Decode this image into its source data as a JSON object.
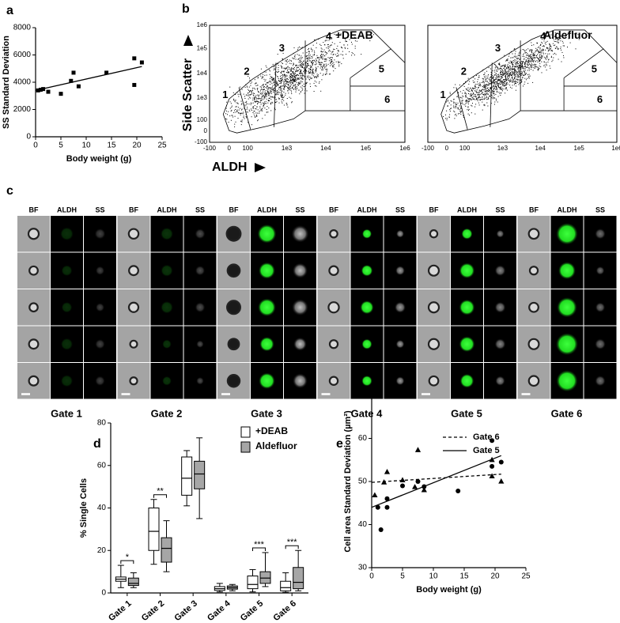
{
  "chart_data": [
    {
      "type": "scatter",
      "panel": "a",
      "xlabel": "Body weight (g)",
      "ylabel": "SS Standard Deviation",
      "xlim": [
        0,
        25
      ],
      "xticks": [
        0,
        5,
        10,
        15,
        20,
        25
      ],
      "ylim": [
        0,
        8000
      ],
      "yticks": [
        0,
        2000,
        4000,
        6000,
        8000
      ],
      "color": "#000000",
      "x": [
        0.5,
        1,
        1.5,
        2.5,
        5,
        7,
        7.5,
        8.5,
        14,
        19.5,
        19.5,
        21
      ],
      "values": [
        3400,
        3450,
        3500,
        3300,
        3150,
        4100,
        4700,
        3700,
        4700,
        5750,
        3800,
        5450
      ],
      "fit": {
        "x": [
          0,
          21
        ],
        "values": [
          3400,
          5150
        ]
      }
    },
    {
      "type": "box",
      "panel": "d",
      "ylabel": "% Single Cells",
      "categories": [
        "Gate 1",
        "Gate 2",
        "Gate 3",
        "Gate 4",
        "Gate 5",
        "Gate 6"
      ],
      "ylim": [
        0,
        80
      ],
      "yticks": [
        0,
        20,
        40,
        60,
        80
      ],
      "legend": "upper right",
      "series": [
        {
          "name": "+DEAB",
          "color": "#ffffff",
          "min": [
            2.5,
            13.5,
            41,
            0.5,
            0.5,
            0.3
          ],
          "q1": [
            5.5,
            20,
            46,
            1.2,
            2,
            1
          ],
          "median": [
            6.5,
            29,
            54,
            2,
            4,
            2.5
          ],
          "q3": [
            7.5,
            40,
            64,
            3,
            8,
            5.5
          ],
          "max": [
            13,
            44,
            67,
            4.5,
            11,
            9.5
          ]
        },
        {
          "name": "Aldefluor",
          "color": "#a6a6a6",
          "min": [
            2.5,
            10,
            35,
            1,
            3,
            1
          ],
          "q1": [
            3.5,
            14.5,
            49,
            1.8,
            4.5,
            2
          ],
          "median": [
            4.5,
            21,
            56,
            2.5,
            7,
            5
          ],
          "q3": [
            7,
            26,
            62,
            3.3,
            10,
            12
          ],
          "max": [
            9.5,
            34,
            73,
            4,
            19,
            20
          ]
        }
      ],
      "significance": [
        "*",
        "**",
        null,
        null,
        "***",
        "***"
      ]
    },
    {
      "type": "scatter",
      "panel": "e",
      "xlabel": "Body weight (g)",
      "ylabel": "Cell area Standard Deviation (µm²)",
      "xlim": [
        0,
        25
      ],
      "xticks": [
        0,
        5,
        10,
        15,
        20,
        25
      ],
      "ylim": [
        30,
        70
      ],
      "yticks": [
        30,
        40,
        50,
        60,
        70
      ],
      "legend": "upper right",
      "series": [
        {
          "name": "Gate 6",
          "color": "#000000",
          "marker": "triangle",
          "dashed": true,
          "x": [
            0.5,
            2,
            2.5,
            5,
            7,
            7.5,
            8.5,
            19.5,
            19.5,
            21
          ],
          "values": [
            46.8,
            49.8,
            52.2,
            50.3,
            48.7,
            57.3,
            48,
            55,
            51.2,
            50
          ],
          "fit": {
            "x": [
              0,
              21
            ],
            "values": [
              49.8,
              51.7
            ]
          }
        },
        {
          "name": "Gate 5",
          "color": "#000000",
          "marker": "circle",
          "dashed": false,
          "x": [
            1,
            1.5,
            2.5,
            2.5,
            5,
            7.5,
            8.5,
            14,
            19.5,
            19.5,
            21
          ],
          "values": [
            44,
            38.8,
            46,
            44,
            49,
            50,
            48.8,
            47.8,
            59.5,
            53.5,
            54.5
          ],
          "fit": {
            "x": [
              0,
              21
            ],
            "values": [
              44,
              56
            ]
          }
        }
      ]
    }
  ],
  "flow_cytometry": {
    "panel": "b",
    "xlabel": "ALDH",
    "ylabel": "Side Scatter",
    "xtick_labels": [
      "-100",
      "0",
      "100",
      "1e3",
      "1e4",
      "1e5",
      "1e6"
    ],
    "ytick_labels": [
      "1e6",
      "1e5",
      "1e4",
      "1e3",
      "100",
      "0",
      "-100"
    ],
    "gate_labels": [
      "1",
      "2",
      "3",
      "4",
      "5",
      "6"
    ],
    "plots": [
      {
        "title": "+DEAB"
      },
      {
        "title": "Aldefluor"
      }
    ]
  },
  "image_grid": {
    "panel": "c",
    "channels": [
      "BF",
      "ALDH",
      "SS"
    ],
    "gates": [
      "Gate 1",
      "Gate 2",
      "Gate 3",
      "Gate 4",
      "Gate 5",
      "Gate 6"
    ]
  }
}
